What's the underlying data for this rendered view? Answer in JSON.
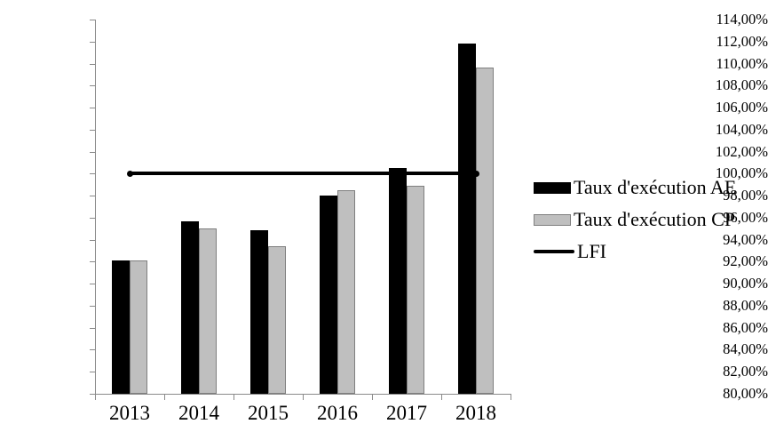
{
  "chart_data": {
    "type": "bar",
    "title": "",
    "xlabel": "",
    "ylabel": "",
    "categories": [
      "2013",
      "2014",
      "2015",
      "2016",
      "2017",
      "2018"
    ],
    "series": [
      {
        "name": "Taux d'exécution AE",
        "type": "bar",
        "color": "#000000",
        "border_color": "#000000",
        "values": [
          92.1,
          95.7,
          94.9,
          98.0,
          100.5,
          111.8
        ]
      },
      {
        "name": "Taux d'exécution CP",
        "type": "bar",
        "color": "#bfbfbf",
        "border_color": "#7f7f7f",
        "values": [
          92.1,
          95.0,
          93.4,
          98.5,
          98.9,
          109.6
        ]
      },
      {
        "name": "LFI",
        "type": "line",
        "color": "#000000",
        "values": [
          100.0,
          100.0,
          100.0,
          100.0,
          100.0,
          100.0
        ]
      }
    ],
    "ylim": [
      80,
      114
    ],
    "ytick_step": 2,
    "ytick_labels": [
      "80,00%",
      "82,00%",
      "84,00%",
      "86,00%",
      "88,00%",
      "90,00%",
      "92,00%",
      "94,00%",
      "96,00%",
      "98,00%",
      "100,00%",
      "102,00%",
      "104,00%",
      "106,00%",
      "108,00%",
      "110,00%",
      "112,00%",
      "114,00%"
    ],
    "grid": false,
    "legend_position": "right",
    "axis_color": "#8a8a8a",
    "background_color": "#ffffff",
    "text_color": "#000000"
  }
}
